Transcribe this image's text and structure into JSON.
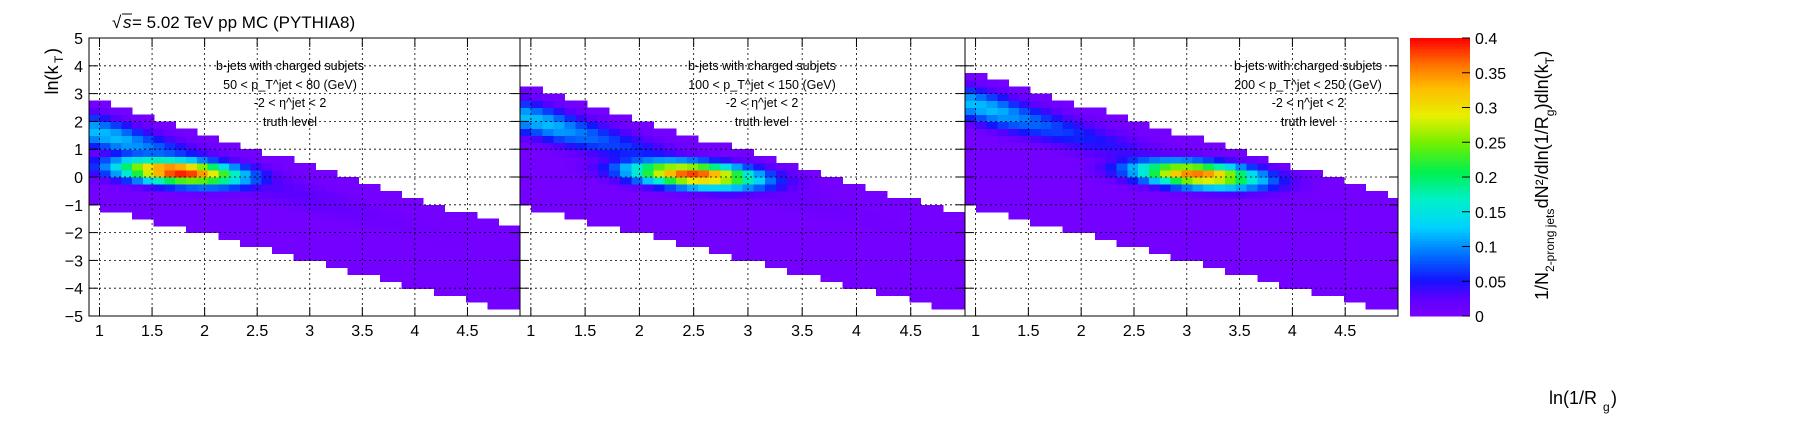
{
  "header": {
    "title_root": "s",
    "title_rest": " = 5.02 TeV pp MC (PYTHIA8)"
  },
  "chart_data": {
    "type": "heatmap",
    "xlabel": "ln(1/R_g)",
    "ylabel": "ln(k_T)",
    "zlabel": "1/N_2-prong jets dN²/dln(1/R_g)dln(k_T)",
    "xlim": [
      0.9,
      5.0
    ],
    "ylim": [
      -5,
      5
    ],
    "zlim": [
      0,
      0.4
    ],
    "x_ticks": [
      "1",
      "1.5",
      "2",
      "2.5",
      "3",
      "3.5",
      "4",
      "4.5"
    ],
    "y_ticks": [
      "−5",
      "−4",
      "−3",
      "−2",
      "−1",
      "0",
      "1",
      "2",
      "3",
      "4",
      "5"
    ],
    "z_ticks": [
      "0",
      "0.05",
      "0.1",
      "0.15",
      "0.2",
      "0.25",
      "0.3",
      "0.35",
      "0.4"
    ],
    "grid": true,
    "colormap": "kBird/ROOT rainbow",
    "colors": {
      "low": "#7b00ff",
      "mid": "#00e0e0",
      "high": "#ff0000"
    },
    "panels": [
      {
        "label_line1": "b-jets with charged subjets",
        "label_line2": "50 < p_T^jet < 80 (GeV)",
        "label_line3": "-2 < η^jet < 2",
        "label_line4": "truth level",
        "peak": {
          "x": 1.75,
          "y": 0.2,
          "z": 0.4
        },
        "band_upper_at_x1": 2.7,
        "band_slope": -1.35,
        "band_lower_at_x1": -1.1,
        "x_max_filled": 4.95
      },
      {
        "label_line1": "b-jets with charged subjets",
        "label_line2": "100 < p_T^jet < 150 (GeV)",
        "label_line3": "-2 < η^jet < 2",
        "label_line4": "truth level",
        "peak": {
          "x": 2.5,
          "y": 0.1,
          "z": 0.38
        },
        "band_upper_at_x1": 3.2,
        "band_slope": -1.35,
        "band_lower_at_x1": -1.1,
        "x_max_filled": 4.95
      },
      {
        "label_line1": "b-jets with charged subjets",
        "label_line2": "200 < p_T^jet < 250 (GeV)",
        "label_line3": "-2 < η^jet < 2",
        "label_line4": "truth level",
        "peak": {
          "x": 3.1,
          "y": 0.1,
          "z": 0.36
        },
        "band_upper_at_x1": 3.7,
        "band_slope": -1.3,
        "band_lower_at_x1": -1.1,
        "x_max_filled": 4.95
      }
    ]
  }
}
